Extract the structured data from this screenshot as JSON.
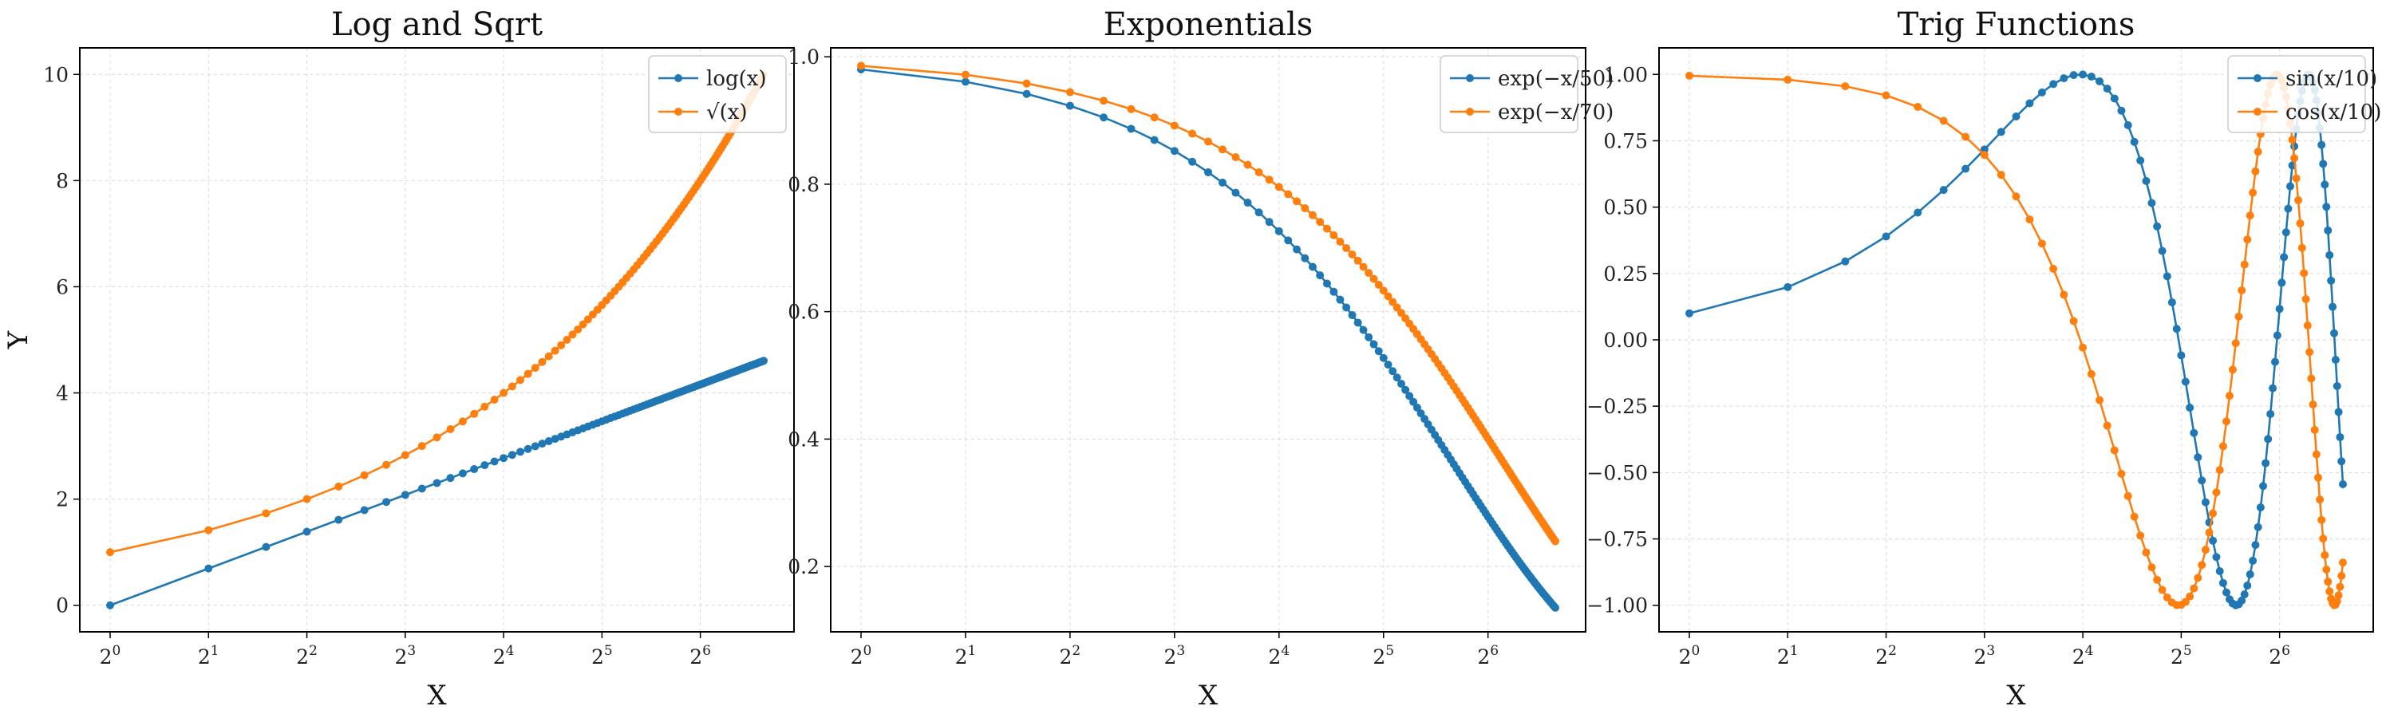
{
  "chart_data": [
    {
      "type": "line",
      "title": "Log and Sqrt",
      "xlabel": "X",
      "ylabel": "Y",
      "xscale": "log2",
      "xlim": [
        1,
        100
      ],
      "ylim": [
        -0.5,
        10.5
      ],
      "xticks": [
        1,
        2,
        4,
        8,
        16,
        32,
        64
      ],
      "xtick_labels": [
        "2^0",
        "2^1",
        "2^2",
        "2^3",
        "2^4",
        "2^5",
        "2^6"
      ],
      "yticks": [
        0,
        2,
        4,
        6,
        8,
        10
      ],
      "ytick_labels": [
        "0",
        "2",
        "4",
        "6",
        "8",
        "10"
      ],
      "grid": true,
      "legend_position": "top-right",
      "x": [
        1,
        2,
        3,
        4,
        5,
        6,
        7,
        8,
        9,
        10,
        11,
        12,
        13,
        14,
        15,
        16,
        17,
        18,
        19,
        20,
        21,
        22,
        23,
        24,
        25,
        26,
        27,
        28,
        29,
        30,
        31,
        32,
        33,
        34,
        35,
        36,
        37,
        38,
        39,
        40,
        41,
        42,
        43,
        44,
        45,
        46,
        47,
        48,
        49,
        50,
        51,
        52,
        53,
        54,
        55,
        56,
        57,
        58,
        59,
        60,
        61,
        62,
        63,
        64,
        65,
        66,
        67,
        68,
        69,
        70,
        71,
        72,
        73,
        74,
        75,
        76,
        77,
        78,
        79,
        80,
        81,
        82,
        83,
        84,
        85,
        86,
        87,
        88,
        89,
        90,
        91,
        92,
        93,
        94,
        95,
        96,
        97,
        98,
        99,
        100
      ],
      "series": [
        {
          "name": "log(x)",
          "function": "log",
          "color": "#1f77b4"
        },
        {
          "name": "√(x)",
          "function": "sqrt",
          "color": "#ff7f0e"
        }
      ]
    },
    {
      "type": "line",
      "title": "Exponentials",
      "xlabel": "X",
      "ylabel": "",
      "xscale": "log2",
      "xlim": [
        1,
        100
      ],
      "ylim": [
        0.0975,
        1.014
      ],
      "xticks": [
        1,
        2,
        4,
        8,
        16,
        32,
        64
      ],
      "xtick_labels": [
        "2^0",
        "2^1",
        "2^2",
        "2^3",
        "2^4",
        "2^5",
        "2^6"
      ],
      "yticks": [
        0.2,
        0.4,
        0.6,
        0.8,
        1.0
      ],
      "ytick_labels": [
        "0.2",
        "0.4",
        "0.6",
        "0.8",
        "1.0"
      ],
      "grid": true,
      "legend_position": "top-right",
      "x": [
        1,
        2,
        3,
        4,
        5,
        6,
        7,
        8,
        9,
        10,
        11,
        12,
        13,
        14,
        15,
        16,
        17,
        18,
        19,
        20,
        21,
        22,
        23,
        24,
        25,
        26,
        27,
        28,
        29,
        30,
        31,
        32,
        33,
        34,
        35,
        36,
        37,
        38,
        39,
        40,
        41,
        42,
        43,
        44,
        45,
        46,
        47,
        48,
        49,
        50,
        51,
        52,
        53,
        54,
        55,
        56,
        57,
        58,
        59,
        60,
        61,
        62,
        63,
        64,
        65,
        66,
        67,
        68,
        69,
        70,
        71,
        72,
        73,
        74,
        75,
        76,
        77,
        78,
        79,
        80,
        81,
        82,
        83,
        84,
        85,
        86,
        87,
        88,
        89,
        90,
        91,
        92,
        93,
        94,
        95,
        96,
        97,
        98,
        99,
        100
      ],
      "series": [
        {
          "name": "exp(−x/50)",
          "function": "exp50",
          "color": "#1f77b4"
        },
        {
          "name": "exp(−x/70)",
          "function": "exp70",
          "color": "#ff7f0e"
        }
      ]
    },
    {
      "type": "line",
      "title": "Trig Functions",
      "xlabel": "X",
      "ylabel": "",
      "xscale": "log2",
      "xlim": [
        1,
        100
      ],
      "ylim": [
        -1.1,
        1.1
      ],
      "xticks": [
        1,
        2,
        4,
        8,
        16,
        32,
        64
      ],
      "xtick_labels": [
        "2^0",
        "2^1",
        "2^2",
        "2^3",
        "2^4",
        "2^5",
        "2^6"
      ],
      "yticks": [
        -1.0,
        -0.75,
        -0.5,
        -0.25,
        0.0,
        0.25,
        0.5,
        0.75,
        1.0
      ],
      "ytick_labels": [
        "−1.00",
        "−0.75",
        "−0.50",
        "−0.25",
        "0.00",
        "0.25",
        "0.50",
        "0.75",
        "1.00"
      ],
      "grid": true,
      "legend_position": "top-right",
      "x": [
        1,
        2,
        3,
        4,
        5,
        6,
        7,
        8,
        9,
        10,
        11,
        12,
        13,
        14,
        15,
        16,
        17,
        18,
        19,
        20,
        21,
        22,
        23,
        24,
        25,
        26,
        27,
        28,
        29,
        30,
        31,
        32,
        33,
        34,
        35,
        36,
        37,
        38,
        39,
        40,
        41,
        42,
        43,
        44,
        45,
        46,
        47,
        48,
        49,
        50,
        51,
        52,
        53,
        54,
        55,
        56,
        57,
        58,
        59,
        60,
        61,
        62,
        63,
        64,
        65,
        66,
        67,
        68,
        69,
        70,
        71,
        72,
        73,
        74,
        75,
        76,
        77,
        78,
        79,
        80,
        81,
        82,
        83,
        84,
        85,
        86,
        87,
        88,
        89,
        90,
        91,
        92,
        93,
        94,
        95,
        96,
        97,
        98,
        99,
        100
      ],
      "series": [
        {
          "name": "sin(x/10)",
          "function": "sin10",
          "color": "#1f77b4"
        },
        {
          "name": "cos(x/10)",
          "function": "cos10",
          "color": "#ff7f0e"
        }
      ]
    }
  ]
}
